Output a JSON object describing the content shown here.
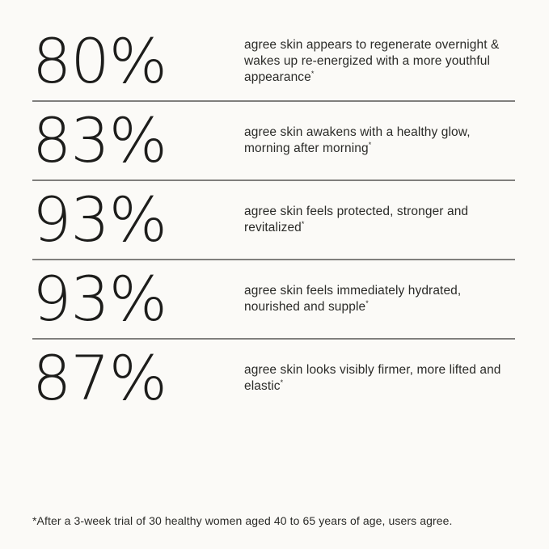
{
  "page": {
    "background_color": "#fbfaf7",
    "text_color": "#2b2b28",
    "stat_color": "#1d1d1b",
    "divider_color": "#807f7d"
  },
  "stats": [
    {
      "value": "80%",
      "claim": "agree skin appears to regenerate overnight & wakes up re-energized with a more youthful appearance",
      "marker": "*"
    },
    {
      "value": "83%",
      "claim": "agree skin awakens with a healthy glow, morning after morning",
      "marker": "*"
    },
    {
      "value": "93%",
      "claim": "agree skin feels protected, stronger and revitalized",
      "marker": "*"
    },
    {
      "value": "93%",
      "claim": "agree skin feels immediately hydrated, nourished and supple",
      "marker": "*"
    },
    {
      "value": "87%",
      "claim": "agree skin looks visibly firmer, more lifted and elastic",
      "marker": "*"
    }
  ],
  "footnote": "*After a 3-week trial of 30 healthy women aged 40 to 65 years of age, users agree."
}
